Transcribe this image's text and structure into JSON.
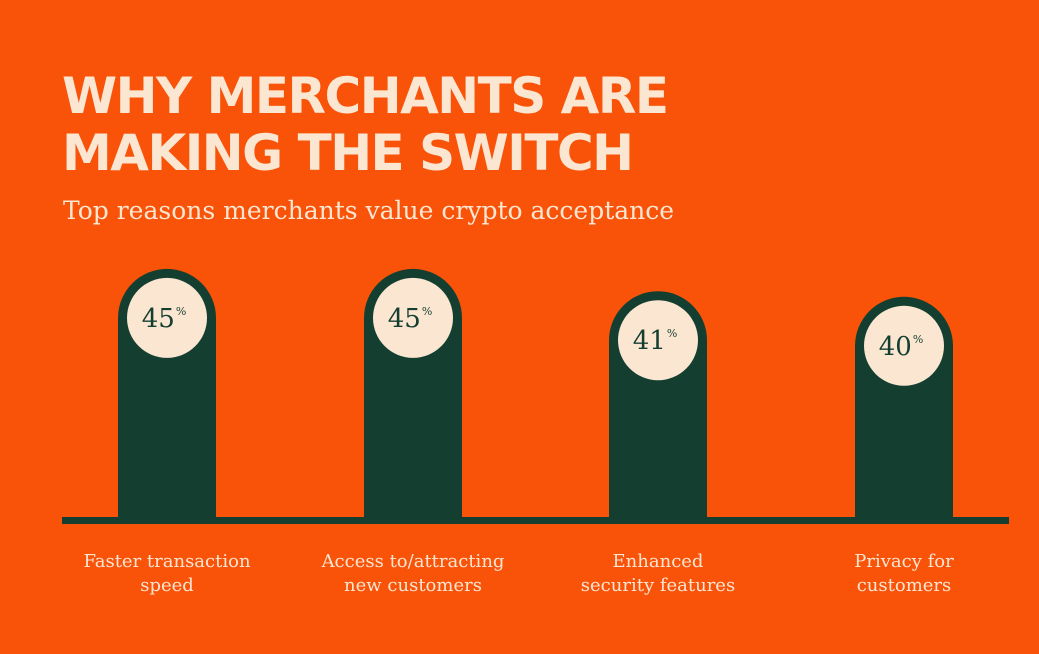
{
  "title_lines": [
    "WHY MERCHANTS ARE",
    "MAKING THE SWITCH"
  ],
  "subtitle": "Top reasons merchants value crypto acceptance",
  "colors": {
    "background": "#f85309",
    "bar": "#143f30",
    "circle": "#fbe6d2",
    "text_light": "#fbe6d2"
  },
  "chart_data": {
    "type": "bar",
    "title": "WHY MERCHANTS ARE MAKING THE SWITCH",
    "subtitle": "Top reasons merchants value crypto acceptance",
    "categories": [
      [
        "Faster transaction",
        "speed"
      ],
      [
        "Access to/attracting",
        "new customers"
      ],
      [
        "Enhanced",
        "security features"
      ],
      [
        "Privacy for",
        "customers"
      ]
    ],
    "values": [
      45,
      45,
      41,
      40
    ],
    "value_unit": "%",
    "ylim": [
      0,
      50
    ],
    "grid": false,
    "legend": "none"
  }
}
